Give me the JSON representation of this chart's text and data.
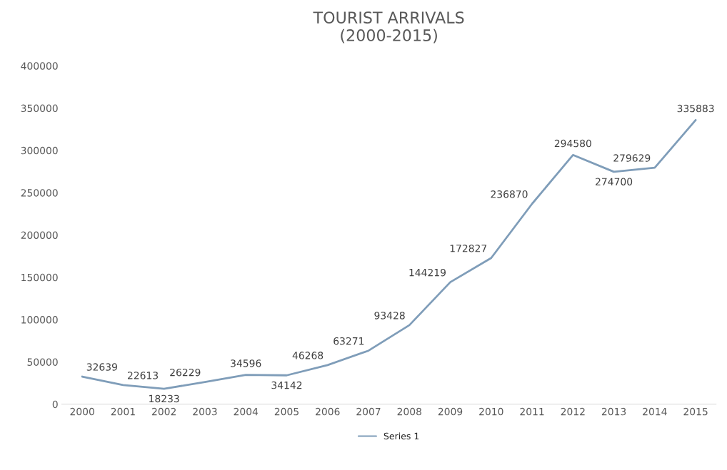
{
  "chart_data": {
    "type": "line",
    "title": "TOURIST ARRIVALS\n(2000-2015)",
    "categories": [
      "2000",
      "2001",
      "2002",
      "2003",
      "2004",
      "2005",
      "2006",
      "2007",
      "2008",
      "2009",
      "2010",
      "2011",
      "2012",
      "2013",
      "2014",
      "2015"
    ],
    "series": [
      {
        "name": "Series 1",
        "color": "#7f9db9",
        "values": [
          32639,
          22613,
          18233,
          26229,
          34596,
          34142,
          46268,
          63271,
          93428,
          144219,
          172827,
          236870,
          294580,
          274700,
          279629,
          335883
        ]
      }
    ],
    "ylim": [
      0,
      400000
    ],
    "yticks": [
      0,
      50000,
      100000,
      150000,
      200000,
      250000,
      300000,
      350000,
      400000
    ],
    "data_labels": true,
    "grid": false,
    "legend": "bottom",
    "marker": "none",
    "line_style": "solid"
  }
}
